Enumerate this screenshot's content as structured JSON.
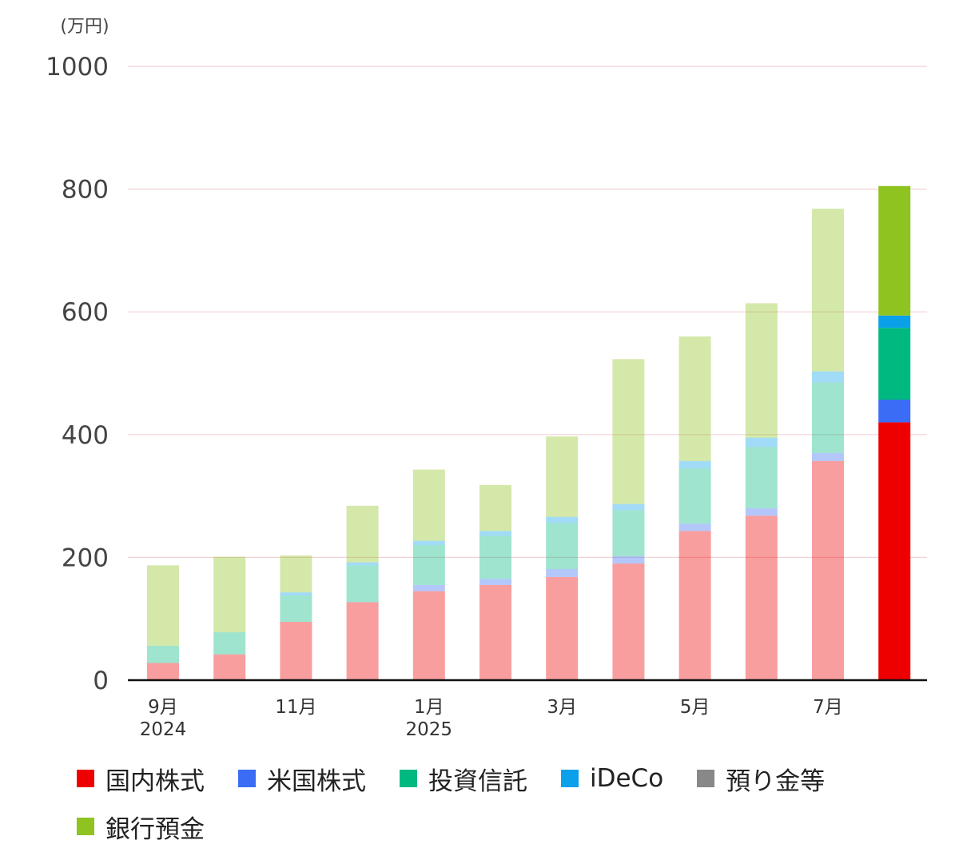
{
  "chart_data": {
    "type": "bar",
    "stacked": true,
    "unit_label": "(万円)",
    "ylim": [
      0,
      1000
    ],
    "yticks": [
      0,
      200,
      400,
      600,
      800,
      1000
    ],
    "grid": true,
    "legend_position": "bottom",
    "categories": [
      "2024-09",
      "2024-10",
      "2024-11",
      "2024-12",
      "2025-01",
      "2025-02",
      "2025-03",
      "2025-04",
      "2025-05",
      "2025-06",
      "2025-07",
      "2025-08"
    ],
    "x_tick_labels": [
      {
        "index": 0,
        "lines": [
          "9月",
          "2024"
        ]
      },
      {
        "index": 2,
        "lines": [
          "11月"
        ]
      },
      {
        "index": 4,
        "lines": [
          "1月",
          "2025"
        ]
      },
      {
        "index": 6,
        "lines": [
          "3月"
        ]
      },
      {
        "index": 8,
        "lines": [
          "5月"
        ]
      },
      {
        "index": 10,
        "lines": [
          "7月"
        ]
      }
    ],
    "highlight_index": 11,
    "series": [
      {
        "name": "国内株式",
        "color": "#ee0000",
        "values": [
          28,
          42,
          95,
          127,
          145,
          155,
          168,
          190,
          243,
          268,
          357,
          420
        ]
      },
      {
        "name": "米国株式",
        "color": "#3b6cf5",
        "values": [
          0,
          0,
          0,
          0,
          10,
          10,
          13,
          12,
          12,
          12,
          13,
          37
        ]
      },
      {
        "name": "投資信託",
        "color": "#00b980",
        "values": [
          28,
          36,
          43,
          60,
          65,
          70,
          75,
          75,
          90,
          100,
          115,
          117
        ]
      },
      {
        "name": "iDeCo",
        "color": "#0aa0ea",
        "values": [
          0,
          0,
          5,
          5,
          7,
          8,
          10,
          10,
          12,
          15,
          18,
          20
        ]
      },
      {
        "name": "預り金等",
        "color": "#888888",
        "values": [
          0,
          0,
          0,
          0,
          0,
          0,
          0,
          0,
          0,
          0,
          0,
          0
        ]
      },
      {
        "name": "銀行預金",
        "color": "#8fc31f",
        "values": [
          131,
          123,
          60,
          92,
          116,
          75,
          131,
          236,
          203,
          219,
          265,
          211
        ]
      }
    ]
  }
}
